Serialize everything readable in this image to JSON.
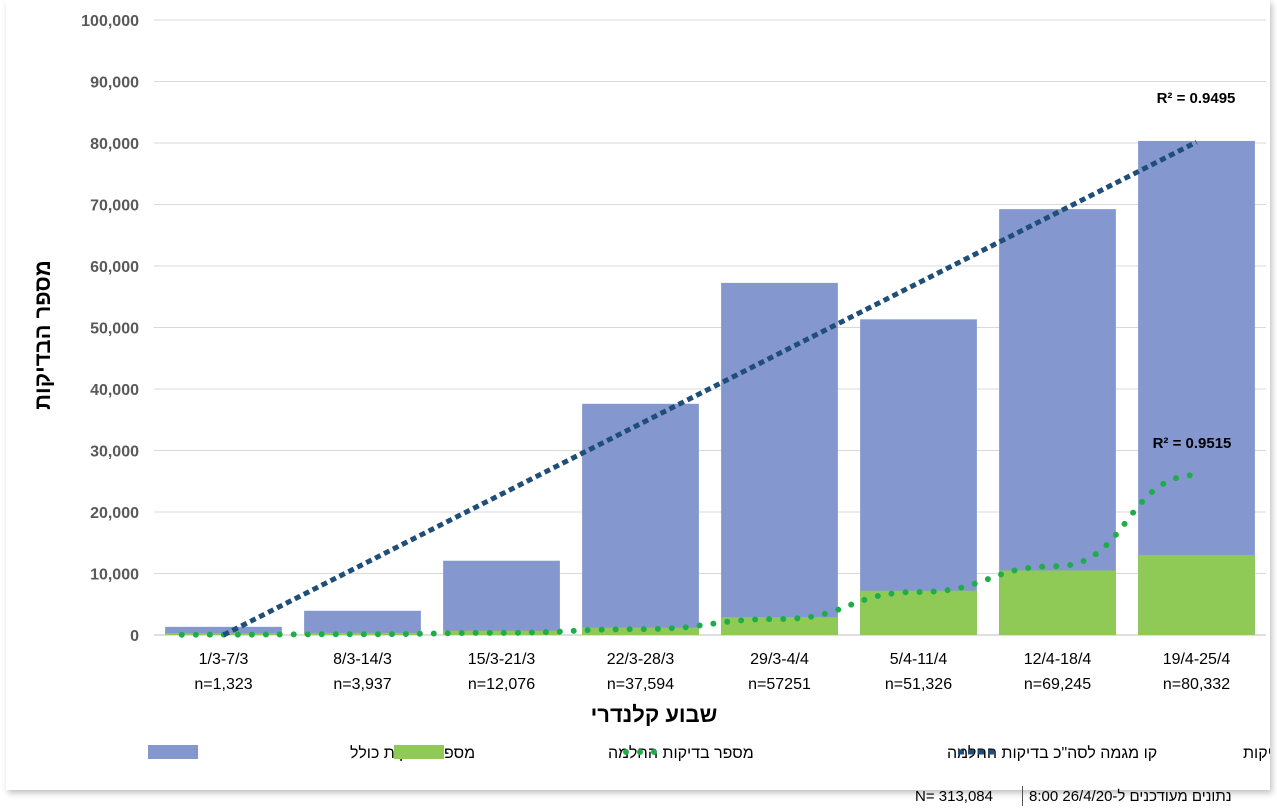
{
  "chart_data": {
    "type": "bar",
    "xlabel": "שבוע קלנדרי",
    "ylabel": "מספר הבדיקות",
    "ylim": [
      0,
      100000
    ],
    "yticks": [
      0,
      10000,
      20000,
      30000,
      40000,
      50000,
      60000,
      70000,
      80000,
      90000,
      100000
    ],
    "ytick_labels": [
      "0",
      "10,000",
      "20,000",
      "30,000",
      "40,000",
      "50,000",
      "60,000",
      "70,000",
      "80,000",
      "90,000",
      "100,000"
    ],
    "grid": true,
    "categories": [
      "1/3-7/3",
      "8/3-14/3",
      "15/3-21/3",
      "22/3-28/3",
      "29/3-4/4",
      "5/4-11/4",
      "12/4-18/4",
      "19/4-25/4"
    ],
    "category_n_labels": [
      "n=1,323",
      "n=3,937",
      "n=12,076",
      "n=37,594",
      "n=57251",
      "n=51,326",
      "n=69,245",
      "n=80,332"
    ],
    "series": [
      {
        "name": "מספר בדיקות כולל",
        "type": "bar",
        "color": "#8497cf",
        "values": [
          1323,
          3937,
          12076,
          37594,
          57251,
          51326,
          69245,
          80332
        ]
      },
      {
        "name": "מספר בדיקות החלמה",
        "type": "bar",
        "color": "#8fca56",
        "values": [
          300,
          350,
          700,
          1200,
          2900,
          7200,
          10500,
          13000
        ]
      },
      {
        "name": "קו מגמה לסה\"כ בדיקות החלמה",
        "type": "trendline",
        "style": "dotted",
        "color": "#1fad4c",
        "values": [
          50,
          120,
          350,
          950,
          2600,
          7000,
          11200,
          26000
        ],
        "r_squared_label": "R² = 0.9515"
      },
      {
        "name": "קו מגמה לסה\"כ בדיקות",
        "type": "trendline",
        "style": "dashed",
        "color": "#1f4e79",
        "values": [
          0,
          11450,
          22900,
          34350,
          45800,
          57250,
          68700,
          80150
        ],
        "r_squared_label": "R² = 0.9495"
      }
    ],
    "legend_position": "bottom"
  },
  "footer": {
    "n_total": "N= 313,084",
    "updated_text": "8:00 26/4/20-נתונים מעודכנים ל"
  }
}
